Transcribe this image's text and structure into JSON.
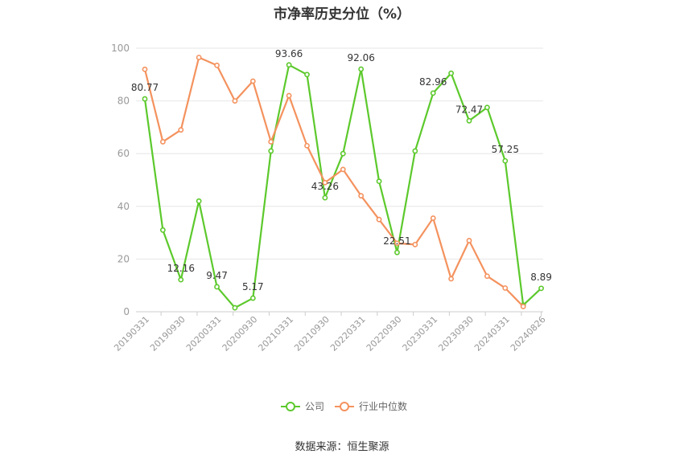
{
  "chart_data": {
    "type": "line",
    "title": "市净率历史分位（%）",
    "ylim": [
      0,
      100
    ],
    "yticks": [
      0,
      20,
      40,
      60,
      80,
      100
    ],
    "x_tick_labels": [
      "20190331",
      "20190930",
      "20200331",
      "20200930",
      "20210331",
      "20210930",
      "20220331",
      "20220930",
      "20230331",
      "20230930",
      "20240331",
      "20240826"
    ],
    "x": [
      "20190331",
      "20190630",
      "20190930",
      "20191231",
      "20200331",
      "20200630",
      "20200930",
      "20201231",
      "20210331",
      "20210630",
      "20210930",
      "20211231",
      "20220331",
      "20220630",
      "20220930",
      "20221231",
      "20230331",
      "20230630",
      "20230930",
      "20231231",
      "20240331",
      "20240630",
      "20240826"
    ],
    "series": [
      {
        "name": "公司",
        "color": "#5cc92c",
        "values": [
          80.77,
          31,
          12.16,
          42,
          9.47,
          1.5,
          5.17,
          61,
          93.66,
          90,
          43.26,
          60,
          92.06,
          49.5,
          22.51,
          61,
          82.96,
          90.5,
          72.47,
          77.5,
          57.25,
          2.5,
          8.89
        ],
        "data_labels": [
          {
            "index": 0,
            "text": "80.77"
          },
          {
            "index": 2,
            "text": "12.16"
          },
          {
            "index": 4,
            "text": "9.47"
          },
          {
            "index": 6,
            "text": "5.17"
          },
          {
            "index": 8,
            "text": "93.66"
          },
          {
            "index": 10,
            "text": "43.26"
          },
          {
            "index": 12,
            "text": "92.06"
          },
          {
            "index": 14,
            "text": "22.51"
          },
          {
            "index": 16,
            "text": "82.96"
          },
          {
            "index": 18,
            "text": "72.47"
          },
          {
            "index": 20,
            "text": "57.25"
          },
          {
            "index": 22,
            "text": "8.89"
          }
        ]
      },
      {
        "name": "行业中位数",
        "color": "#f4925e",
        "values": [
          92,
          64.5,
          69,
          96.5,
          93.5,
          80,
          87.5,
          64.5,
          82,
          63,
          49,
          54,
          44,
          35,
          26,
          25.5,
          35.5,
          12.5,
          27,
          13.5,
          9,
          2,
          null
        ]
      }
    ],
    "legend_position": "bottom",
    "source": "数据来源：恒生聚源"
  }
}
